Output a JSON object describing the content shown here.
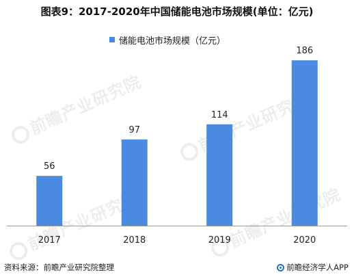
{
  "title": "图表9：2017-2020年中国储能电池市场规模(单位：亿元)",
  "legend_label": "储能电池市场规模（亿元）",
  "source": "资料来源：前瞻产业研究院整理",
  "brand": "前瞻经济学人APP",
  "watermark_text": "前瞻产业研究院",
  "colors": {
    "bar": "#4A8AE0",
    "axis": "#999999"
  },
  "chart_data": {
    "type": "bar",
    "title": "图表9：2017-2020年中国储能电池市场规模(单位：亿元)",
    "categories": [
      "2017",
      "2018",
      "2019",
      "2020"
    ],
    "series": [
      {
        "name": "储能电池市场规模（亿元）",
        "values": [
          56,
          97,
          114,
          186
        ]
      }
    ],
    "data_labels": [
      "56",
      "97",
      "114",
      "186"
    ],
    "ylim": [
      0,
      200
    ],
    "legend": "top-center",
    "grid": false
  }
}
